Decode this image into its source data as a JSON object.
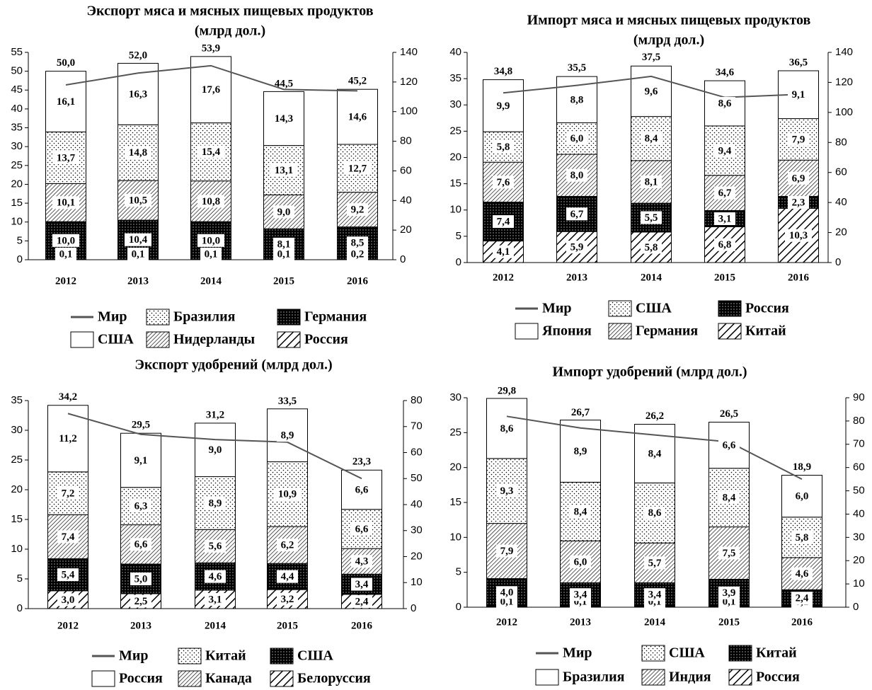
{
  "chart_data": [
    {
      "type": "bar",
      "title": "Экспорт мяса и мясных пищевых продуктов",
      "subtitle": "(млрд  дол.)",
      "categories": [
        "2012",
        "2013",
        "2014",
        "2015",
        "2016"
      ],
      "ylim": [
        0,
        55
      ],
      "yticks": [
        0,
        5,
        10,
        15,
        20,
        25,
        30,
        35,
        40,
        45,
        50,
        55
      ],
      "y2lim": [
        0,
        140
      ],
      "y2ticks": [
        0,
        20,
        40,
        60,
        80,
        100,
        120,
        140
      ],
      "series": [
        {
          "name": "Мир",
          "type": "line",
          "axis": "y2",
          "color": "#555555",
          "values": [
            118,
            126,
            131,
            115,
            114
          ]
        },
        {
          "name": "Россия",
          "pattern": "diag",
          "values": [
            0.1,
            0.1,
            0.1,
            0.1,
            0.2
          ],
          "value_labels": [
            "0,1",
            "0,1",
            "0,1",
            "0,1",
            "0,2"
          ]
        },
        {
          "name": "Германия",
          "pattern": "dark",
          "values": [
            10.0,
            10.4,
            10.0,
            8.1,
            8.5
          ],
          "value_labels": [
            "10,0",
            "10,4",
            "10,0",
            "8,1",
            "8,5"
          ]
        },
        {
          "name": "Нидерланды",
          "pattern": "hatch",
          "values": [
            10.1,
            10.5,
            10.8,
            9.0,
            9.2
          ],
          "value_labels": [
            "10,1",
            "10,5",
            "10,8",
            "9,0",
            "9,2"
          ]
        },
        {
          "name": "Бразилия",
          "pattern": "dots",
          "values": [
            13.7,
            14.8,
            15.4,
            13.1,
            12.7
          ],
          "value_labels": [
            "13,7",
            "14,8",
            "15,4",
            "13,1",
            "12,7"
          ]
        },
        {
          "name": "США",
          "pattern": "none",
          "values": [
            16.1,
            16.3,
            17.6,
            14.3,
            14.6
          ],
          "value_labels": [
            "16,1",
            "16,3",
            "17,6",
            "14,3",
            "14,6"
          ]
        }
      ],
      "totals": {
        "values": [
          50.0,
          52.0,
          53.9,
          44.5,
          45.2
        ],
        "value_labels": [
          "50,0",
          "52,0",
          "53,9",
          "44,5",
          "45,2"
        ]
      }
    },
    {
      "type": "bar",
      "title": "Импорт мяса и мясных пищевых продуктов",
      "subtitle": "(млрд  дол.)",
      "categories": [
        "2012",
        "2013",
        "2014",
        "2015",
        "2016"
      ],
      "ylim": [
        0,
        40
      ],
      "yticks": [
        0,
        5,
        10,
        15,
        20,
        25,
        30,
        35,
        40
      ],
      "y2lim": [
        0,
        140
      ],
      "y2ticks": [
        0,
        20,
        40,
        60,
        80,
        100,
        120,
        140
      ],
      "series": [
        {
          "name": "Мир",
          "type": "line",
          "axis": "y2",
          "color": "#555555",
          "values": [
            113,
            118,
            124,
            110,
            112
          ]
        },
        {
          "name": "Китай",
          "pattern": "diag",
          "values": [
            4.1,
            5.9,
            5.8,
            6.8,
            10.3
          ],
          "value_labels": [
            "4,1",
            "5,9",
            "5,8",
            "6,8",
            "10,3"
          ]
        },
        {
          "name": "Россия",
          "pattern": "dark",
          "values": [
            7.4,
            6.7,
            5.5,
            3.1,
            2.3
          ],
          "value_labels": [
            "7,4",
            "6,7",
            "5,5",
            "3,1",
            "2,3"
          ]
        },
        {
          "name": "Германия",
          "pattern": "hatch",
          "values": [
            7.6,
            8.0,
            8.1,
            6.7,
            6.9
          ],
          "value_labels": [
            "7,6",
            "8,0",
            "8,1",
            "6,7",
            "6,9"
          ]
        },
        {
          "name": "США",
          "pattern": "dots",
          "values": [
            5.8,
            6.0,
            8.4,
            9.4,
            7.9
          ],
          "value_labels": [
            "5,8",
            "6,0",
            "8,4",
            "9,4",
            "7,9"
          ]
        },
        {
          "name": "Япония",
          "pattern": "none",
          "values": [
            9.9,
            8.8,
            9.6,
            8.6,
            9.1
          ],
          "value_labels": [
            "9,9",
            "8,8",
            "9,6",
            "8,6",
            "9,1"
          ]
        }
      ],
      "totals": {
        "values": [
          34.8,
          35.5,
          37.5,
          34.6,
          36.5
        ],
        "value_labels": [
          "34,8",
          "35,5",
          "37,5",
          "34,6",
          "36,5"
        ]
      }
    },
    {
      "type": "bar",
      "title": "Экспорт удобрений (млрд  дол.)",
      "categories": [
        "2012",
        "2013",
        "2014",
        "2015",
        "2016"
      ],
      "ylim": [
        0,
        35
      ],
      "yticks": [
        0,
        5,
        10,
        15,
        20,
        25,
        30,
        35
      ],
      "y2lim": [
        0,
        80
      ],
      "y2ticks": [
        0,
        10,
        20,
        30,
        40,
        50,
        60,
        70,
        80
      ],
      "series": [
        {
          "name": "Мир",
          "type": "line",
          "axis": "y2",
          "color": "#555555",
          "values": [
            75,
            67,
            65,
            64,
            50
          ]
        },
        {
          "name": "Белоруссия",
          "pattern": "diag",
          "values": [
            3.0,
            2.5,
            3.1,
            3.2,
            2.4
          ],
          "value_labels": [
            "3,0",
            "2,5",
            "3,1",
            "3,2",
            "2,4"
          ]
        },
        {
          "name": "США",
          "pattern": "dark",
          "values": [
            5.4,
            5.0,
            4.6,
            4.4,
            3.4
          ],
          "value_labels": [
            "5,4",
            "5,0",
            "4,6",
            "4,4",
            "3,4"
          ]
        },
        {
          "name": "Канада",
          "pattern": "hatch",
          "values": [
            7.4,
            6.6,
            5.6,
            6.2,
            4.3
          ],
          "value_labels": [
            "7,4",
            "6,6",
            "5,6",
            "6,2",
            "4,3"
          ]
        },
        {
          "name": "Китай",
          "pattern": "dots",
          "values": [
            7.2,
            6.3,
            8.9,
            10.9,
            6.6
          ],
          "value_labels": [
            "7,2",
            "6,3",
            "8,9",
            "10,9",
            "6,6"
          ]
        },
        {
          "name": "Россия",
          "pattern": "none",
          "values": [
            11.2,
            9.1,
            9.0,
            8.9,
            6.6
          ],
          "value_labels": [
            "11,2",
            "9,1",
            "9,0",
            "8,9",
            "6,6"
          ]
        }
      ],
      "totals": {
        "values": [
          34.2,
          29.5,
          31.2,
          33.5,
          23.3
        ],
        "value_labels": [
          "34,2",
          "29,5",
          "31,2",
          "33,5",
          "23,3"
        ]
      }
    },
    {
      "type": "bar",
      "title": "Импорт удобрений (млрд  дол.)",
      "categories": [
        "2012",
        "2013",
        "2014",
        "2015",
        "2016"
      ],
      "ylim": [
        0,
        30
      ],
      "yticks": [
        0,
        5,
        10,
        15,
        20,
        25,
        30
      ],
      "y2lim": [
        0,
        90
      ],
      "y2ticks": [
        0,
        10,
        20,
        30,
        40,
        50,
        60,
        70,
        80,
        90
      ],
      "series": [
        {
          "name": "Мир",
          "type": "line",
          "axis": "y2",
          "color": "#555555",
          "values": [
            82,
            77,
            74,
            71,
            55
          ]
        },
        {
          "name": "Россия",
          "pattern": "diag",
          "values": [
            0.1,
            0.1,
            0.1,
            0.1,
            0.1
          ],
          "value_labels": [
            "0,1",
            "0,1",
            "0,1",
            "0,1",
            "0,1"
          ]
        },
        {
          "name": "Китай",
          "pattern": "dark",
          "values": [
            4.0,
            3.4,
            3.4,
            3.9,
            2.4
          ],
          "value_labels": [
            "4,0",
            "3,4",
            "3,4",
            "3,9",
            "2,4"
          ]
        },
        {
          "name": "Индия",
          "pattern": "hatch",
          "values": [
            7.9,
            6.0,
            5.7,
            7.5,
            4.6
          ],
          "value_labels": [
            "7,9",
            "6,0",
            "5,7",
            "7,5",
            "4,6"
          ]
        },
        {
          "name": "США",
          "pattern": "dots",
          "values": [
            9.3,
            8.4,
            8.6,
            8.4,
            5.8
          ],
          "value_labels": [
            "9,3",
            "8,4",
            "8,6",
            "8,4",
            "5,8"
          ]
        },
        {
          "name": "Бразилия",
          "pattern": "none",
          "values": [
            8.6,
            8.9,
            8.4,
            6.6,
            6.0
          ],
          "value_labels": [
            "8,6",
            "8,9",
            "8,4",
            "6,6",
            "6,0"
          ]
        }
      ],
      "totals": {
        "values": [
          29.8,
          26.7,
          26.2,
          26.5,
          18.9
        ],
        "value_labels": [
          "29,8",
          "26,7",
          "26,2",
          "26,5",
          "18,9"
        ]
      }
    }
  ]
}
